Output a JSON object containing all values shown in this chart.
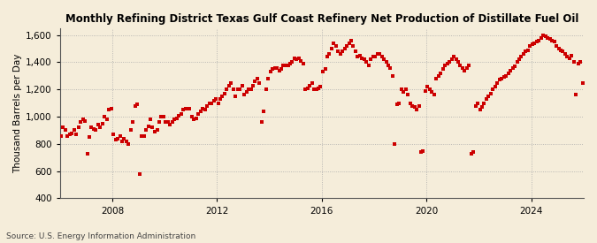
{
  "title": "Monthly Refining District Texas Gulf Coast Refinery Net Production of Distillate Fuel Oil",
  "ylabel": "Thousand Barrels per Day",
  "source": "Source: U.S. Energy Information Administration",
  "bg_color": "#f5edda",
  "dot_color": "#cc0000",
  "grid_color": "#aaaaaa",
  "grid_linestyle": ":",
  "ylim": [
    400,
    1650
  ],
  "yticks": [
    400,
    600,
    800,
    1000,
    1200,
    1400,
    1600
  ],
  "ytick_labels": [
    "400",
    "600",
    "800",
    "1,000",
    "1,200",
    "1,400",
    "1,600"
  ],
  "xtick_years": [
    2008,
    2012,
    2016,
    2020,
    2024
  ],
  "start_year": 2006,
  "start_month": 1,
  "values": [
    860,
    920,
    900,
    860,
    870,
    880,
    900,
    870,
    920,
    960,
    980,
    970,
    730,
    850,
    920,
    910,
    900,
    940,
    920,
    950,
    1000,
    980,
    1050,
    1060,
    870,
    830,
    840,
    860,
    820,
    840,
    820,
    800,
    900,
    960,
    1080,
    1090,
    580,
    860,
    860,
    900,
    930,
    980,
    920,
    890,
    900,
    960,
    1000,
    1000,
    960,
    960,
    940,
    960,
    980,
    990,
    1010,
    1020,
    1050,
    1060,
    1060,
    1060,
    1000,
    980,
    990,
    1020,
    1040,
    1060,
    1050,
    1080,
    1100,
    1100,
    1120,
    1130,
    1100,
    1130,
    1150,
    1170,
    1200,
    1230,
    1250,
    1200,
    1150,
    1200,
    1200,
    1230,
    1160,
    1180,
    1200,
    1200,
    1230,
    1260,
    1280,
    1250,
    960,
    1040,
    1200,
    1280,
    1330,
    1350,
    1360,
    1360,
    1340,
    1350,
    1380,
    1380,
    1380,
    1390,
    1400,
    1430,
    1420,
    1430,
    1410,
    1390,
    1200,
    1210,
    1230,
    1250,
    1200,
    1200,
    1210,
    1220,
    1330,
    1350,
    1440,
    1460,
    1500,
    1540,
    1520,
    1480,
    1460,
    1480,
    1500,
    1520,
    1540,
    1560,
    1520,
    1480,
    1440,
    1450,
    1430,
    1420,
    1400,
    1380,
    1420,
    1440,
    1440,
    1460,
    1460,
    1440,
    1420,
    1400,
    1380,
    1360,
    1300,
    800,
    1090,
    1100,
    1200,
    1180,
    1200,
    1160,
    1100,
    1080,
    1070,
    1050,
    1080,
    740,
    750,
    1190,
    1220,
    1200,
    1180,
    1160,
    1280,
    1300,
    1320,
    1350,
    1380,
    1390,
    1400,
    1420,
    1440,
    1420,
    1400,
    1380,
    1360,
    1340,
    1360,
    1380,
    730,
    740,
    1080,
    1100,
    1050,
    1070,
    1100,
    1130,
    1150,
    1170,
    1200,
    1220,
    1250,
    1270,
    1280,
    1290,
    1300,
    1320,
    1340,
    1360,
    1370,
    1400,
    1420,
    1440,
    1460,
    1480,
    1490,
    1520,
    1530,
    1540,
    1550,
    1560,
    1580,
    1600,
    1590,
    1580,
    1570,
    1560,
    1550,
    1520,
    1500,
    1490,
    1480,
    1460,
    1440,
    1430,
    1450,
    1400,
    1160,
    1390,
    1400,
    1250
  ]
}
